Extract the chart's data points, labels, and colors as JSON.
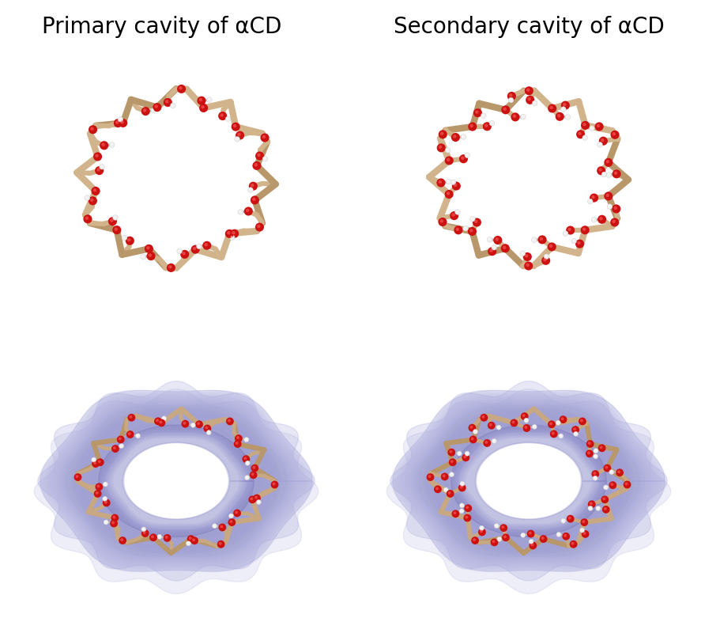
{
  "title_left_display": "Primary cavity of αCD",
  "title_right_display": "Secondary cavity of αCD",
  "background_color": "#ffffff",
  "title_fontsize": 20,
  "fig_width": 8.92,
  "fig_height": 8.05,
  "n_glucose": 6,
  "stick_color": "#D2B48C",
  "stick_color_dark": "#B8976A",
  "oxygen_color": "#CC1111",
  "hydrogen_color": "#F0F0F0",
  "hydrogen_edge": "#CCCCCC",
  "surface_color_light": "#AAAADD",
  "surface_color_mid": "#8888BB",
  "surface_color_dark": "#6666AA",
  "surface_blue_inner": "#4444AA",
  "white": "#FFFFFF"
}
